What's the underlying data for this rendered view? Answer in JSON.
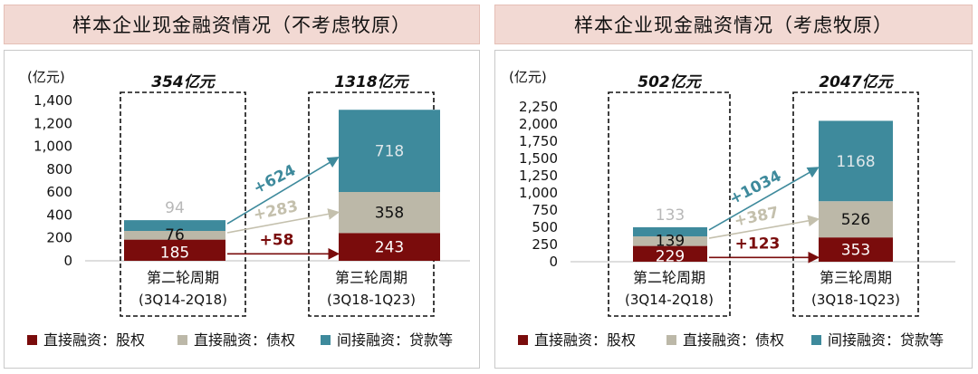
{
  "colors": {
    "equity": "#7a0c0c",
    "debt": "#bcb8a8",
    "loan": "#3e8a9c",
    "header_bg": "#f2d9d3",
    "arrow_debt": "#c4c0ad"
  },
  "legend": {
    "equity": "直接融资：股权",
    "debt": "直接融资：债权",
    "loan": "间接融资：贷款等"
  },
  "chart_data": [
    {
      "type": "bar",
      "title": "样本企业现金融资情况（不考虑牧原）",
      "unit": "(亿元)",
      "ylim": [
        0,
        1400
      ],
      "yticks": [
        0,
        200,
        400,
        600,
        800,
        1000,
        1200,
        1400
      ],
      "ytick_labels": [
        "0",
        "200",
        "400",
        "600",
        "800",
        "1,000",
        "1,200",
        "1,400"
      ],
      "categories": [
        {
          "name": "第二轮周期",
          "period": "(3Q14-2Q18)",
          "total_label": "354亿元"
        },
        {
          "name": "第三轮周期",
          "period": "(3Q18-1Q23)",
          "total_label": "1318亿元"
        }
      ],
      "series": [
        {
          "name": "直接融资：股权",
          "key": "equity",
          "values": [
            185,
            243
          ],
          "labels": [
            "185",
            "243"
          ]
        },
        {
          "name": "直接融资：债权",
          "key": "debt",
          "values": [
            76,
            358
          ],
          "labels": [
            "76",
            "358"
          ]
        },
        {
          "name": "间接融资：贷款等",
          "key": "loan",
          "values": [
            94,
            718
          ],
          "labels": [
            "94",
            "718"
          ]
        }
      ],
      "changes": {
        "loan": "+624",
        "debt": "+283",
        "equity": "+58"
      }
    },
    {
      "type": "bar",
      "title": "样本企业现金融资情况（考虑牧原）",
      "unit": "(亿元)",
      "ylim": [
        0,
        2250
      ],
      "yticks": [
        0,
        250,
        500,
        750,
        1000,
        1250,
        1500,
        1750,
        2000,
        2250
      ],
      "ytick_labels": [
        "0",
        "250",
        "500",
        "750",
        "1,000",
        "1,250",
        "1,500",
        "1,750",
        "2,000",
        "2,250"
      ],
      "categories": [
        {
          "name": "第二轮周期",
          "period": "(3Q14-2Q18)",
          "total_label": "502亿元"
        },
        {
          "name": "第三轮周期",
          "period": "(3Q18-1Q23)",
          "total_label": "2047亿元"
        }
      ],
      "series": [
        {
          "name": "直接融资：股权",
          "key": "equity",
          "values": [
            229,
            353
          ],
          "labels": [
            "229",
            "353"
          ]
        },
        {
          "name": "直接融资：债权",
          "key": "debt",
          "values": [
            139,
            526
          ],
          "labels": [
            "139",
            "526"
          ]
        },
        {
          "name": "间接融资：贷款等",
          "key": "loan",
          "values": [
            133,
            1168
          ],
          "labels": [
            "133",
            "1168"
          ]
        }
      ],
      "changes": {
        "loan": "+1034",
        "debt": "+387",
        "equity": "+123"
      }
    }
  ]
}
